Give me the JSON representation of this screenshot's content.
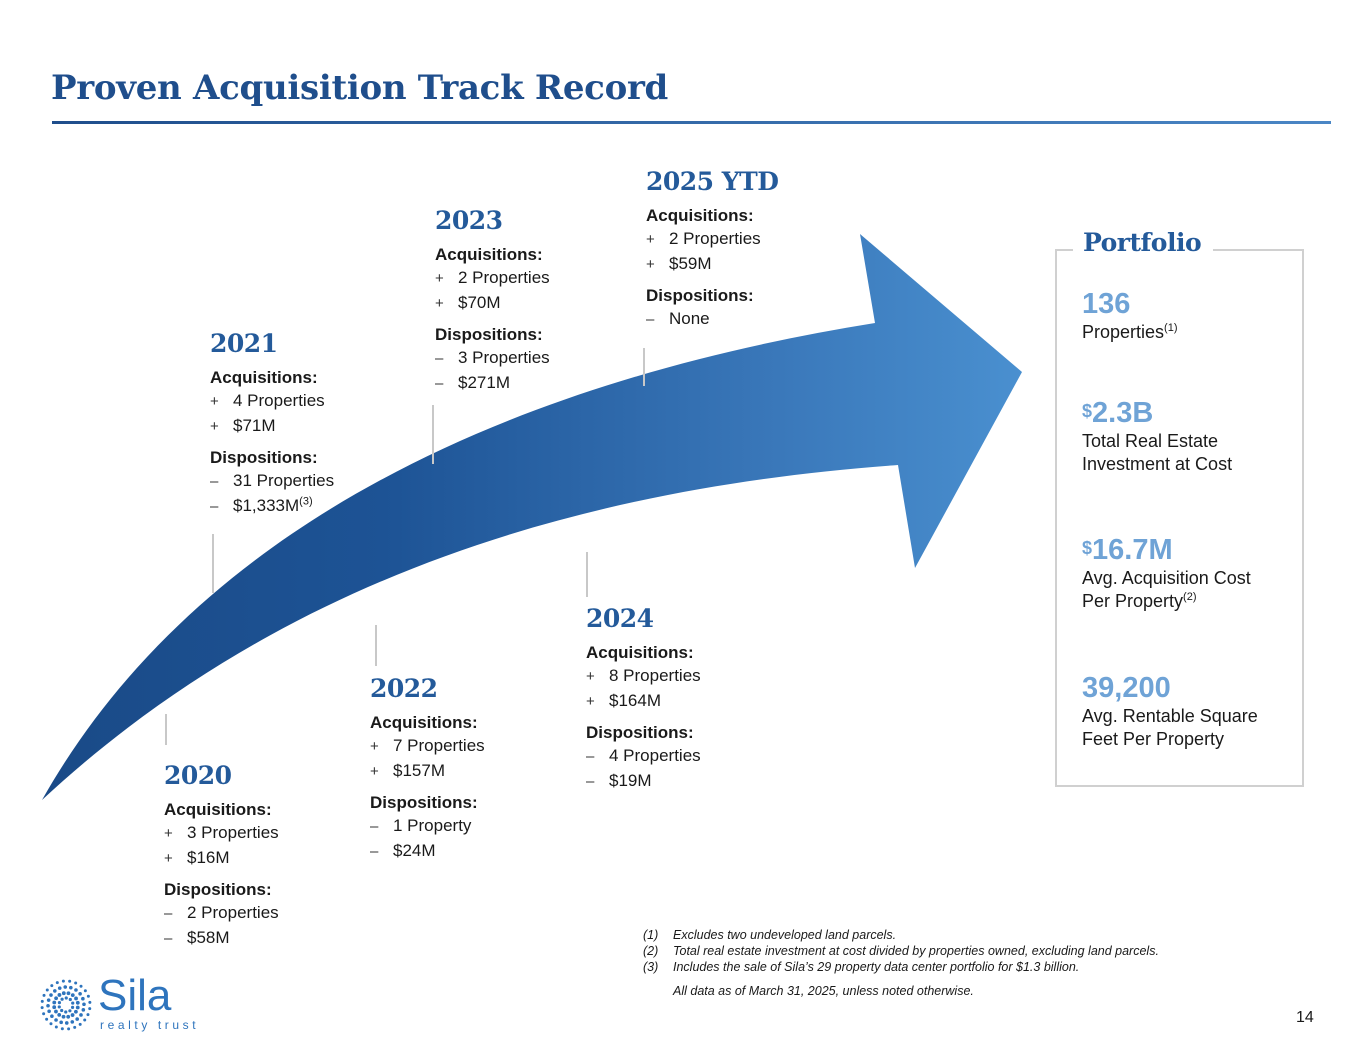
{
  "title": "Proven Acquisition Track Record",
  "timeline": [
    {
      "year": "2020",
      "acq_head": "Acquisitions:",
      "acq": [
        {
          "sign": "+",
          "text": "3 Properties"
        },
        {
          "sign": "+",
          "text": "$16M"
        }
      ],
      "disp_head": "Dispositions:",
      "disp": [
        {
          "sign": "–",
          "text": "2 Properties"
        },
        {
          "sign": "–",
          "text": "$58M"
        }
      ]
    },
    {
      "year": "2021",
      "acq_head": "Acquisitions:",
      "acq": [
        {
          "sign": "+",
          "text": "4 Properties"
        },
        {
          "sign": "+",
          "text": "$71M"
        }
      ],
      "disp_head": "Dispositions:",
      "disp": [
        {
          "sign": "–",
          "text": "31 Properties"
        },
        {
          "sign": "–",
          "text": "$1,333M",
          "sup": "(3)"
        }
      ]
    },
    {
      "year": "2022",
      "acq_head": "Acquisitions:",
      "acq": [
        {
          "sign": "+",
          "text": "7 Properties"
        },
        {
          "sign": "+",
          "text": "$157M"
        }
      ],
      "disp_head": "Dispositions:",
      "disp": [
        {
          "sign": "–",
          "text": "1 Property"
        },
        {
          "sign": "–",
          "text": "$24M"
        }
      ]
    },
    {
      "year": "2023",
      "acq_head": "Acquisitions:",
      "acq": [
        {
          "sign": "+",
          "text": "2 Properties"
        },
        {
          "sign": "+",
          "text": "$70M"
        }
      ],
      "disp_head": "Dispositions:",
      "disp": [
        {
          "sign": "–",
          "text": "3 Properties"
        },
        {
          "sign": "–",
          "text": "$271M"
        }
      ]
    },
    {
      "year": "2024",
      "acq_head": "Acquisitions:",
      "acq": [
        {
          "sign": "+",
          "text": "8 Properties"
        },
        {
          "sign": "+",
          "text": "$164M"
        }
      ],
      "disp_head": "Dispositions:",
      "disp": [
        {
          "sign": "–",
          "text": "4 Properties"
        },
        {
          "sign": "–",
          "text": "$19M"
        }
      ]
    },
    {
      "year": "2025 YTD",
      "acq_head": "Acquisitions:",
      "acq": [
        {
          "sign": "+",
          "text": "2 Properties"
        },
        {
          "sign": "+",
          "text": "$59M"
        }
      ],
      "disp_head": "Dispositions:",
      "disp": [
        {
          "sign": "–",
          "text": "None"
        }
      ]
    }
  ],
  "portfolio": {
    "title": "Portfolio",
    "stats": [
      {
        "prefix": "",
        "value": "136",
        "label": "Properties",
        "label_sup": "(1)"
      },
      {
        "prefix": "$",
        "value": "2.3B",
        "label": "Total Real Estate Investment at Cost",
        "label_sup": ""
      },
      {
        "prefix": "$",
        "value": "16.7M",
        "label": "Avg. Acquisition Cost Per Property",
        "label_sup": "(2)"
      },
      {
        "prefix": "",
        "value": "39,200",
        "label": "Avg. Rentable Square Feet Per Property",
        "label_sup": ""
      }
    ]
  },
  "footnotes": [
    {
      "num": "(1)",
      "text": "Excludes two undeveloped land parcels."
    },
    {
      "num": "(2)",
      "text": "Total real estate investment at cost divided by properties owned, excluding land parcels."
    },
    {
      "num": "(3)",
      "text": "Includes the sale of Sila’s 29 property data center portfolio for $1.3 billion."
    }
  ],
  "footnote_note": "All data as of March 31, 2025, unless noted otherwise.",
  "logo": {
    "name": "Sila",
    "tagline": "realty trust"
  },
  "page_number": "14",
  "colors": {
    "brand_dark": "#1f4e8c",
    "brand_light": "#6fa3d6",
    "arrow_start": "#1a4a87",
    "arrow_end": "#4a90d0"
  }
}
